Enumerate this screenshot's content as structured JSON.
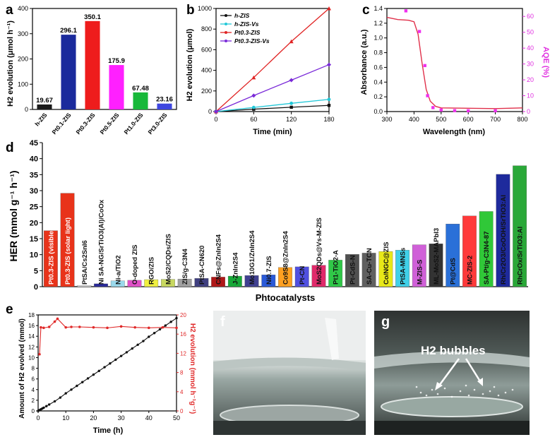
{
  "panels": {
    "a": {
      "letter": "a",
      "ylabel": "H2 evolution (μmol h⁻¹)"
    },
    "b": {
      "letter": "b",
      "xlabel": "Time (min)",
      "ylabel": "H2 evolution (μmol)"
    },
    "c": {
      "letter": "c",
      "xlabel": "Wavelength (nm)",
      "ylabel_left": "Absorbance (a.u.)",
      "ylabel_right": "AQE (%)"
    },
    "d": {
      "letter": "d",
      "xlabel": "Phtocatalysts",
      "ylabel": "HER (mmol g⁻¹ h⁻¹)"
    },
    "e": {
      "letter": "e",
      "xlabel": "Time (h)",
      "ylabel_left": "Amount of H2 evolved (mmol)",
      "ylabel_right": "H2 evolution (mmol h⁻¹g⁻¹)"
    },
    "f": {
      "letter": "f"
    },
    "g": {
      "letter": "g",
      "annotation": "H2 bubbles"
    }
  },
  "chart_data": [
    {
      "panel": "a",
      "type": "bar",
      "categories": [
        "h-ZIS",
        "Pt0.1-ZIS",
        "Pt0.3-ZIS",
        "Pt0.5-ZIS",
        "Pt1.0-ZIS",
        "Pt3.0-ZIS"
      ],
      "values": [
        19.67,
        296.1,
        350.1,
        175.9,
        67.48,
        23.16
      ],
      "labels": [
        "19.67",
        "296.1",
        "350.1",
        "175.9",
        "67.48",
        "23.16"
      ],
      "colors": [
        "#1a1a1a",
        "#1a2a9c",
        "#ee1c1c",
        "#ff20ff",
        "#18b83a",
        "#3e46e0"
      ],
      "ylim": [
        0,
        400
      ],
      "yticks": [
        0,
        100,
        200,
        300,
        400
      ]
    },
    {
      "panel": "b",
      "type": "line",
      "x": [
        0,
        60,
        120,
        180
      ],
      "series": [
        {
          "name": "h-ZIS",
          "color": "#111111",
          "marker": "square",
          "values": [
            0,
            23,
            42,
            60
          ]
        },
        {
          "name": "h-ZIS-Vs",
          "color": "#22c8d8",
          "marker": "circle",
          "values": [
            0,
            40,
            80,
            118
          ]
        },
        {
          "name": "Pt0.3-ZIS",
          "color": "#e02424",
          "marker": "triangle",
          "values": [
            0,
            330,
            680,
            1000
          ]
        },
        {
          "name": "Pt0.3-ZIS-Vs",
          "color": "#7a2ad8",
          "marker": "diamond",
          "values": [
            0,
            155,
            305,
            455
          ]
        }
      ],
      "xlim": [
        0,
        180
      ],
      "ylim": [
        0,
        1000
      ],
      "xticks": [
        0,
        60,
        120,
        180
      ],
      "yticks": [
        0,
        200,
        400,
        600,
        800,
        1000
      ]
    },
    {
      "panel": "c",
      "type": "line",
      "absorbance": {
        "color": "#e0304a",
        "points": [
          [
            300,
            1.28
          ],
          [
            340,
            1.25
          ],
          [
            380,
            1.24
          ],
          [
            400,
            1.22
          ],
          [
            415,
            1.05
          ],
          [
            430,
            0.65
          ],
          [
            445,
            0.3
          ],
          [
            460,
            0.14
          ],
          [
            480,
            0.07
          ],
          [
            500,
            0.05
          ],
          [
            600,
            0.045
          ],
          [
            700,
            0.04
          ],
          [
            800,
            0.05
          ]
        ]
      },
      "aqe": {
        "color": "#ee30ee",
        "points": [
          [
            370,
            63.5
          ],
          [
            420,
            50.5
          ],
          [
            440,
            29
          ],
          [
            450,
            10
          ],
          [
            470,
            2.5
          ],
          [
            500,
            1
          ],
          [
            550,
            0.6
          ],
          [
            600,
            0.5
          ],
          [
            700,
            0.5
          ]
        ]
      },
      "xlim": [
        300,
        800
      ],
      "ylim_left": [
        0,
        1.4
      ],
      "ylim_right": [
        0,
        65
      ],
      "xticks": [
        300,
        400,
        500,
        600,
        700,
        800
      ],
      "yticks_left": [
        0.0,
        0.2,
        0.4,
        0.6,
        0.8,
        1.0,
        1.2,
        1.4
      ],
      "yticks_right": [
        0,
        10,
        20,
        30,
        40,
        50,
        60
      ]
    },
    {
      "panel": "d",
      "type": "bar",
      "categories": [
        "Pt0.3-ZIS (visible light)",
        "Pt0.3-ZIS (solar light)",
        "PtSA/Cs2SnI6",
        "Ni SA-NG/SrTiO3(Al)/CoOx",
        "Ni-a/TiO2",
        "O-doped ZIS",
        "RGO/ZIS",
        "MoS2/CQDs/ZIS",
        "ZIS/g-C3N4",
        "PtSA-CN620",
        "CNFs@ZnIn2S4",
        "J-ZnIn2S4",
        "Mo10G1/ZnIn2S4",
        "Ni0.7-ZIS",
        "Co9S8@ZnIn2S4",
        "Pt-CN",
        "MoS2QDs@Vs-M-ZIS",
        "Pt1-TiO2-A",
        "Pt-CdS-N",
        "SA-Cu-TCN",
        "Co/NGC@ZIS",
        "PtSA-MNSs",
        "M-ZIS-S",
        "ML-MoS2-MAPbI3",
        "Pt@CdS",
        "MC-ZIS-2",
        "SA-Pt/g-C3N4-87",
        "Rh/Cr2O3/CoOOH/SrTiO3:Al",
        "RhCrOx/SrTiO3:Al"
      ],
      "values": [
        17.5,
        29.2,
        0.4,
        0.9,
        1.8,
        2.0,
        2.2,
        2.3,
        2.4,
        2.6,
        3.0,
        3.3,
        3.5,
        3.7,
        6.0,
        6.2,
        6.7,
        8.3,
        10.1,
        10.5,
        11.0,
        11.4,
        13.1,
        13.4,
        19.6,
        22.1,
        23.5,
        35.1,
        37.8
      ],
      "colors": [
        "#e8331a",
        "#e8331a",
        "#e8e8e8",
        "#2a2a9a",
        "#9ad9ec",
        "#e050c8",
        "#f0f040",
        "#c8d860",
        "#a0a0a0",
        "#404080",
        "#b01818",
        "#18a838",
        "#404090",
        "#2a5ad8",
        "#ffa020",
        "#5050e0",
        "#e02a6a",
        "#30c848",
        "#505050",
        "#606060",
        "#e8e818",
        "#40d0e8",
        "#d060d8",
        "#333333",
        "#2a70d8",
        "#ff3a3a",
        "#30c838",
        "#1e2a9c",
        "#2aa838"
      ],
      "ylim": [
        0,
        45
      ],
      "yticks": [
        0,
        5,
        10,
        15,
        20,
        25,
        30,
        35,
        40,
        45
      ]
    },
    {
      "panel": "e",
      "type": "line",
      "amount": {
        "color": "#111111",
        "x": [
          0,
          0.5,
          1,
          1.5,
          2,
          3,
          4,
          6,
          8,
          10,
          12,
          14,
          16,
          18,
          20,
          22,
          24,
          26,
          28,
          30,
          32,
          34,
          36,
          38,
          40,
          42,
          44,
          46,
          48,
          50
        ],
        "values": [
          0,
          0.15,
          0.3,
          0.45,
          0.6,
          0.9,
          1.2,
          1.8,
          2.5,
          3.3,
          4.0,
          4.7,
          5.4,
          6.1,
          6.8,
          7.5,
          8.2,
          8.9,
          9.6,
          10.3,
          11.0,
          11.7,
          12.4,
          13.1,
          13.9,
          14.6,
          15.3,
          16.0,
          16.7,
          17.4
        ]
      },
      "rate": {
        "color": "#e02a2a",
        "x": [
          0.5,
          1,
          2,
          4,
          6,
          7,
          10,
          12,
          15,
          20,
          25,
          30,
          35,
          40,
          45,
          50
        ],
        "values": [
          11.8,
          17.4,
          17.3,
          17.5,
          18.6,
          19.2,
          17.4,
          17.5,
          17.5,
          17.4,
          17.3,
          17.6,
          17.4,
          17.3,
          17.4,
          17.3
        ]
      },
      "xlim": [
        0,
        50
      ],
      "ylim_left": [
        0,
        18
      ],
      "ylim_right": [
        0,
        20
      ],
      "xticks": [
        0,
        10,
        20,
        30,
        40,
        50
      ],
      "yticks_left": [
        0,
        2,
        4,
        6,
        8,
        10,
        12,
        14,
        16,
        18
      ],
      "yticks_right": [
        0,
        4,
        8,
        12,
        16,
        20
      ]
    }
  ]
}
